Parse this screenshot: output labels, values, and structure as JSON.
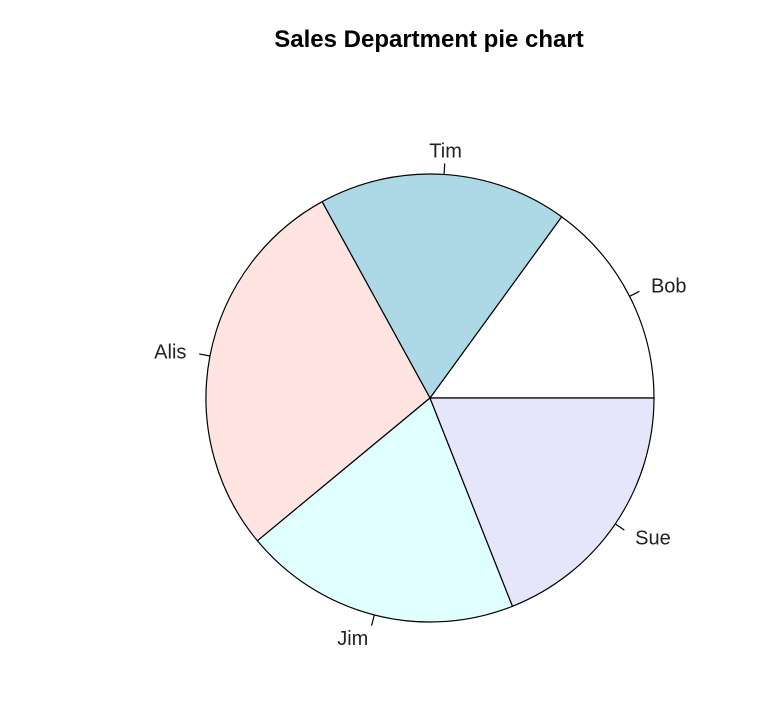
{
  "chart_data": {
    "type": "pie",
    "title": "Sales Department pie chart",
    "categories": [
      "Bob",
      "Tim",
      "Alis",
      "Jim",
      "Sue"
    ],
    "values": [
      15,
      18,
      28,
      20,
      19
    ],
    "colors": [
      "#ffffff",
      "#add8e6",
      "#ffe4e1",
      "#e0ffff",
      "#e6e6fa"
    ],
    "direction": "counterclockwise",
    "start_angle_deg": 0,
    "legend": "none"
  }
}
